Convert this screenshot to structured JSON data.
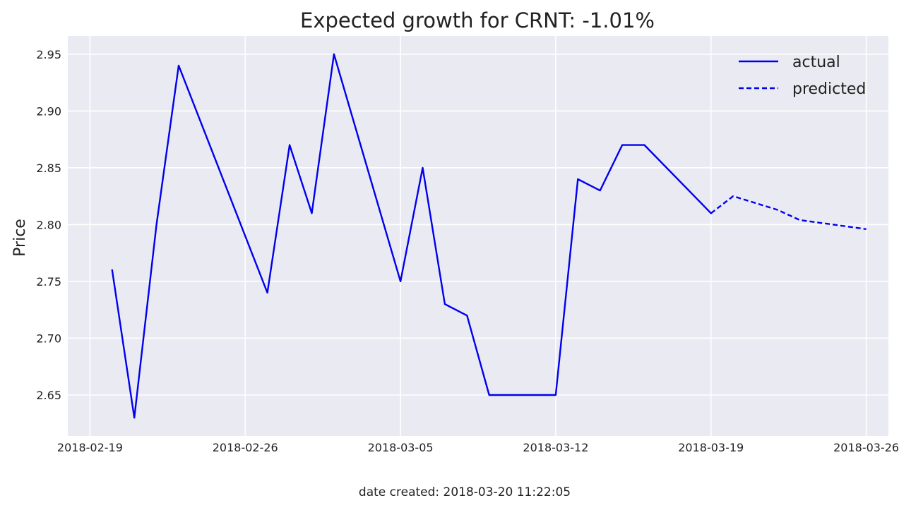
{
  "chart_data": {
    "type": "line",
    "title": "Expected growth for CRNT: -1.01%",
    "xlabel": "",
    "ylabel": "Price",
    "x_ticks": [
      "2018-02-19",
      "2018-02-26",
      "2018-03-05",
      "2018-03-12",
      "2018-03-19",
      "2018-03-26"
    ],
    "y_ticks": [
      "2.65",
      "2.70",
      "2.75",
      "2.80",
      "2.85",
      "2.90",
      "2.95"
    ],
    "xlim": [
      "2018-02-18",
      "2018-03-27"
    ],
    "ylim": [
      2.614,
      2.966
    ],
    "grid": true,
    "legend_position": "top-right",
    "series": [
      {
        "name": "actual",
        "style": "solid",
        "color": "#0000ee",
        "points": [
          [
            "2018-02-20",
            2.76
          ],
          [
            "2018-02-21",
            2.63
          ],
          [
            "2018-02-22",
            2.8
          ],
          [
            "2018-02-23",
            2.94
          ],
          [
            "2018-02-27",
            2.74
          ],
          [
            "2018-02-28",
            2.87
          ],
          [
            "2018-03-01",
            2.81
          ],
          [
            "2018-03-02",
            2.95
          ],
          [
            "2018-03-05",
            2.75
          ],
          [
            "2018-03-06",
            2.85
          ],
          [
            "2018-03-07",
            2.73
          ],
          [
            "2018-03-08",
            2.72
          ],
          [
            "2018-03-09",
            2.65
          ],
          [
            "2018-03-12",
            2.65
          ],
          [
            "2018-03-13",
            2.84
          ],
          [
            "2018-03-14",
            2.83
          ],
          [
            "2018-03-15",
            2.87
          ],
          [
            "2018-03-16",
            2.87
          ],
          [
            "2018-03-19",
            2.81
          ]
        ]
      },
      {
        "name": "predicted",
        "style": "dashed",
        "color": "#0000ee",
        "points": [
          [
            "2018-03-19",
            2.81
          ],
          [
            "2018-03-20",
            2.825
          ],
          [
            "2018-03-22",
            2.813
          ],
          [
            "2018-03-23",
            2.804
          ],
          [
            "2018-03-26",
            2.796
          ]
        ]
      }
    ]
  },
  "footer": {
    "text": "date created: 2018-03-20 11:22:05"
  },
  "colors": {
    "plot_background": "#eaeaf2",
    "grid": "#ffffff",
    "line": "#0000ee"
  }
}
